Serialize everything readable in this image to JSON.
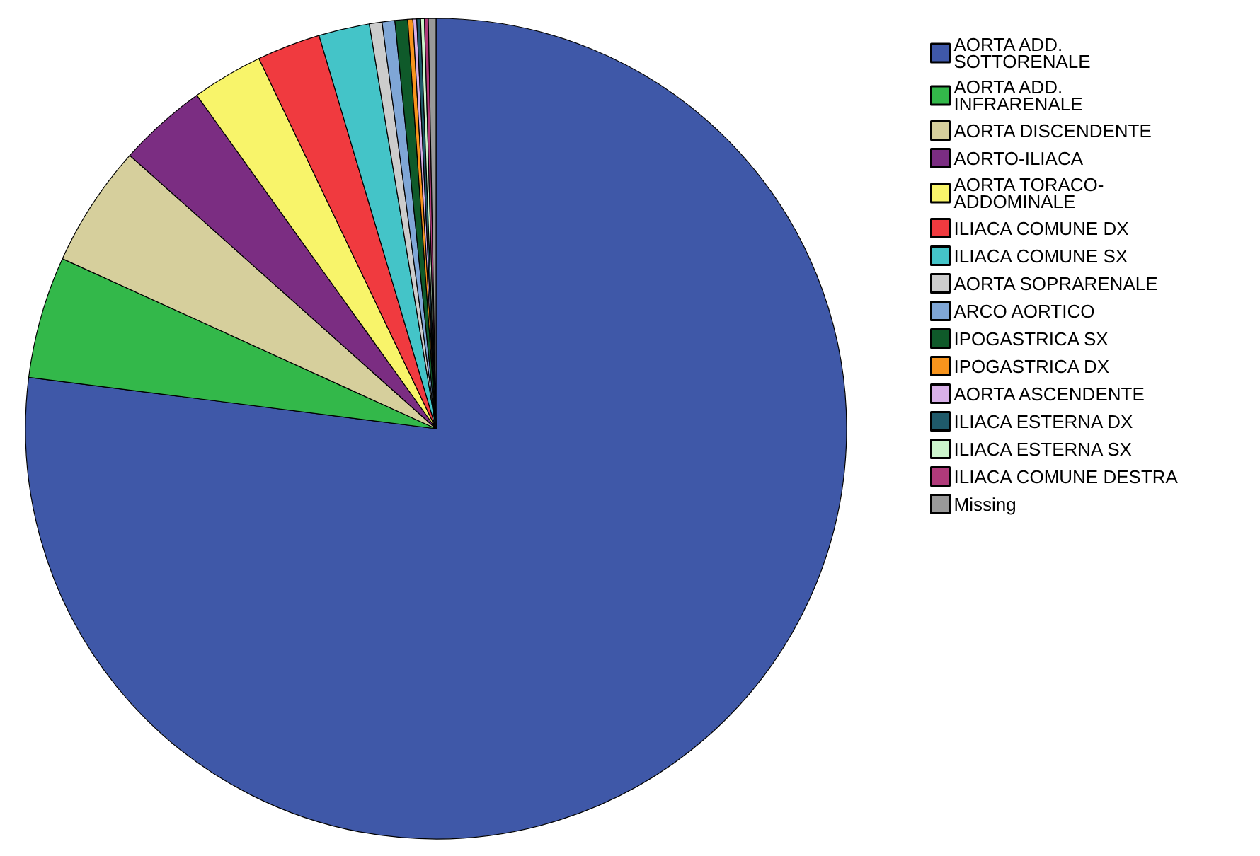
{
  "chart_data": {
    "type": "pie",
    "legend": "right",
    "categories": [
      "AORTA ADD.\nSOTTORENALE",
      "AORTA ADD.\nINFRARENALE",
      "AORTA DISCENDENTE",
      "AORTO-ILIACA",
      "AORTA TORACO-\nADDOMINALE",
      "ILIACA COMUNE DX",
      "ILIACA COMUNE SX",
      "AORTA SOPRARENALE",
      "ARCO AORTICO",
      "IPOGASTRICA SX",
      "IPOGASTRICA DX",
      "AORTA ASCENDENTE",
      "ILIACA ESTERNA DX",
      "ILIACA ESTERNA SX",
      "ILIACA COMUNE DESTRA",
      "Missing"
    ],
    "values": [
      77.0,
      4.8,
      4.8,
      3.5,
      2.8,
      2.5,
      2.0,
      0.5,
      0.5,
      0.5,
      0.2,
      0.15,
      0.15,
      0.15,
      0.15,
      0.3
    ],
    "colors": [
      "#3f58a8",
      "#33b84a",
      "#d6cf9c",
      "#7b2d82",
      "#f8f46a",
      "#f03a3f",
      "#44c4c8",
      "#cccccc",
      "#7fa6d6",
      "#0f5a2a",
      "#f7941d",
      "#d8b0e8",
      "#1f5a6a",
      "#ccf5cc",
      "#b03a7a",
      "#999999"
    ]
  }
}
